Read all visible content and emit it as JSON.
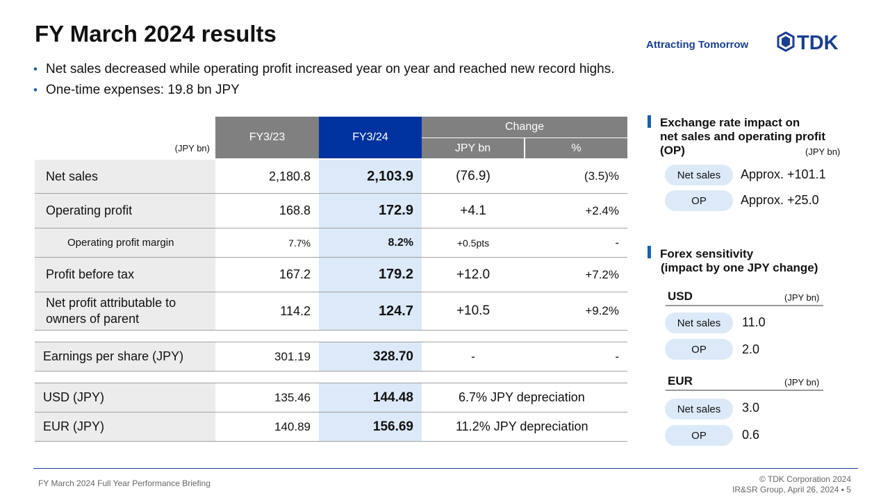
{
  "header": {
    "title": "FY March 2024 results",
    "tagline": "Attracting Tomorrow",
    "logo_text": "TDK"
  },
  "bullets": [
    "Net sales decreased while operating profit increased year on year and reached new record highs.",
    "One-time expenses: 19.8 bn JPY"
  ],
  "table": {
    "unit": "(JPY bn)",
    "col_prev": "FY3/23",
    "col_curr": "FY3/24",
    "col_change": "Change",
    "col_change_jpy": "JPY bn",
    "col_change_pct": "%",
    "rows": [
      {
        "label": "Net sales",
        "prev": "2,180.8",
        "curr": "2,103.9",
        "chg": "(76.9)",
        "pct": "(3.5)%"
      },
      {
        "label": "Operating profit",
        "prev": "168.8",
        "curr": "172.9",
        "chg": "+4.1",
        "pct": "+2.4%"
      },
      {
        "label": "Operating profit margin",
        "prev": "7.7%",
        "curr": "8.2%",
        "chg": "+0.5pts",
        "pct": "-"
      },
      {
        "label": "Profit before tax",
        "prev": "167.2",
        "curr": "179.2",
        "chg": "+12.0",
        "pct": "+7.2%"
      },
      {
        "label": "Net profit attributable to owners of parent",
        "prev": "114.2",
        "curr": "124.7",
        "chg": "+10.5",
        "pct": "+9.2%"
      }
    ],
    "eps": {
      "label": "Earnings per share (JPY)",
      "prev": "301.19",
      "curr": "328.70",
      "chg": "-",
      "pct": "-"
    },
    "fx": [
      {
        "label": "USD (JPY)",
        "prev": "135.46",
        "curr": "144.48",
        "note": "6.7% JPY depreciation"
      },
      {
        "label": "EUR (JPY)",
        "prev": "140.89",
        "curr": "156.69",
        "note": "11.2% JPY depreciation"
      }
    ]
  },
  "exchange_impact": {
    "title_line1": "Exchange rate impact on",
    "title_line2": "net sales and operating profit",
    "title_line3": "(OP)",
    "unit": "(JPY bn)",
    "items": [
      {
        "pill": "Net sales",
        "value": "Approx. +101.1"
      },
      {
        "pill": "OP",
        "value": "Approx. +25.0"
      }
    ]
  },
  "forex_sensitivity": {
    "title_line1": "Forex sensitivity",
    "title_line2": "(impact by one JPY change)",
    "usd": {
      "label": "USD",
      "unit": "(JPY bn)",
      "net_sales_pill": "Net sales",
      "net_sales": "11.0",
      "op_pill": "OP",
      "op": "2.0"
    },
    "eur": {
      "label": "EUR",
      "unit": "(JPY bn)",
      "net_sales_pill": "Net sales",
      "net_sales": "3.0",
      "op_pill": "OP",
      "op": "0.6"
    }
  },
  "footer": {
    "left": "FY March 2024 Full Year Performance Briefing",
    "right_line1": "© TDK Corporation 2024",
    "right_line2": "IR&SR Group, April 26, 2024 ▪ 5"
  },
  "colors": {
    "brand_blue": "#0033a0",
    "highlight": "#dce9f8",
    "header_gray": "#808080",
    "accent": "#1a5fb4"
  }
}
